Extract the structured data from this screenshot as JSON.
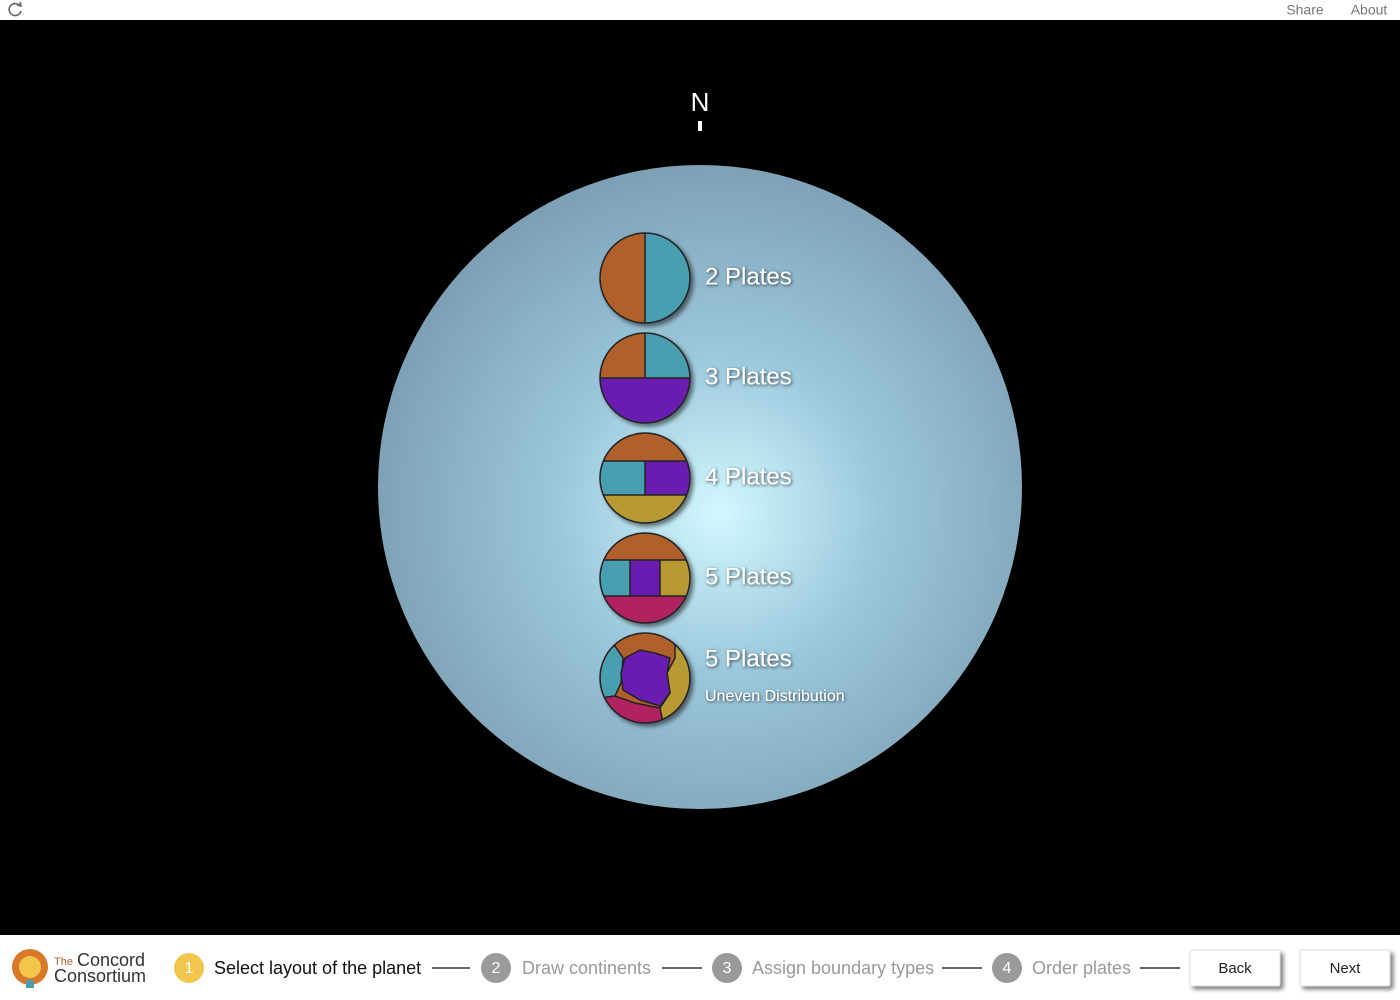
{
  "header": {
    "links": [
      "Share",
      "About"
    ]
  },
  "compass": "N",
  "options": [
    {
      "label": "2 Plates"
    },
    {
      "label": "3 Plates"
    },
    {
      "label": "4 Plates"
    },
    {
      "label": "5 Plates"
    },
    {
      "label": "5 Plates",
      "subtitle": "Uneven Distribution"
    }
  ],
  "logo": {
    "small": "The",
    "line1": "Concord",
    "line2": "Consortium"
  },
  "steps": [
    {
      "number": 1,
      "label": "Select layout of the planet"
    },
    {
      "number": 2,
      "label": "Draw continents"
    },
    {
      "number": 3,
      "label": "Assign boundary types"
    },
    {
      "number": 4,
      "label": "Order plates"
    }
  ],
  "buttons": [
    "Back",
    "Next"
  ]
}
